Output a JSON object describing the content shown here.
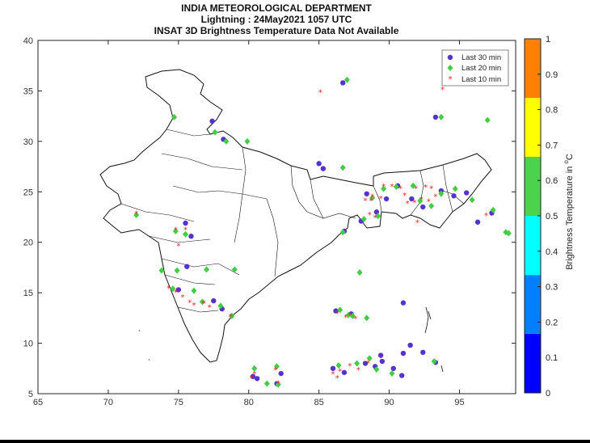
{
  "header": {
    "line1": "INDIA METEOROLOGICAL DEPARTMENT",
    "line2": "Lightning : 24May2021 1057 UTC",
    "line3": "INSAT 3D Brightness Temperature Data Not Available"
  },
  "colorbar": {
    "label_prefix": "Brightness Temperature in",
    "label_unit": "C",
    "label_degree": "o",
    "ticks": [
      "0",
      "0.1",
      "0.2",
      "0.3",
      "0.4",
      "0.5",
      "0.6",
      "0.7",
      "0.8",
      "0.9",
      "1"
    ],
    "colors": [
      "#0000ff",
      "#0080ff",
      "#00ffff",
      "#4cd24c",
      "#ffff00",
      "#ff8000"
    ]
  },
  "legend": {
    "items": [
      {
        "label": "Last 30 min",
        "marker": "circle",
        "color": "#5533cc"
      },
      {
        "label": "Last 20 min",
        "marker": "diamond",
        "color": "#44cc44"
      },
      {
        "label": "Last 10 min",
        "marker": "star",
        "color": "#ee2222"
      }
    ]
  },
  "chart_data": {
    "type": "scatter",
    "title": "INDIA METEOROLOGICAL DEPARTMENT",
    "xlabel": "",
    "ylabel": "",
    "xlim": [
      65,
      99
    ],
    "ylim": [
      5,
      40
    ],
    "xticks": [
      65,
      70,
      75,
      80,
      85,
      90,
      95
    ],
    "yticks": [
      5,
      10,
      15,
      20,
      25,
      30,
      35,
      40
    ],
    "series": [
      {
        "name": "Last 30 min",
        "marker": "circle",
        "color": "#5533cc",
        "points": [
          [
            86.7,
            35.8
          ],
          [
            77.4,
            32.0
          ],
          [
            78.2,
            30.2
          ],
          [
            85.0,
            27.8
          ],
          [
            85.3,
            27.3
          ],
          [
            93.3,
            32.4
          ],
          [
            75.5,
            21.9
          ],
          [
            75.9,
            20.6
          ],
          [
            75.6,
            17.6
          ],
          [
            75.0,
            15.3
          ],
          [
            77.5,
            14.2
          ],
          [
            78.1,
            13.4
          ],
          [
            80.3,
            6.7
          ],
          [
            80.6,
            6.5
          ],
          [
            82.0,
            6.0
          ],
          [
            82.3,
            7.0
          ],
          [
            86.0,
            7.5
          ],
          [
            86.8,
            7.1
          ],
          [
            86.2,
            13.2
          ],
          [
            87.3,
            12.9
          ],
          [
            88.3,
            8.0
          ],
          [
            89.0,
            7.7
          ],
          [
            89.4,
            8.8
          ],
          [
            89.5,
            8.2
          ],
          [
            90.3,
            7.5
          ],
          [
            90.9,
            6.8
          ],
          [
            91.0,
            9.0
          ],
          [
            91.5,
            9.8
          ],
          [
            92.4,
            9.1
          ],
          [
            91.0,
            14.0
          ],
          [
            88.0,
            22.1
          ],
          [
            88.4,
            24.8
          ],
          [
            89.8,
            24.3
          ],
          [
            90.6,
            25.6
          ],
          [
            91.6,
            24.3
          ],
          [
            92.4,
            23.5
          ],
          [
            93.7,
            25.1
          ],
          [
            94.6,
            24.6
          ],
          [
            95.5,
            24.9
          ],
          [
            96.3,
            22.0
          ],
          [
            97.3,
            22.9
          ],
          [
            86.8,
            21.1
          ],
          [
            89.1,
            23.0
          ],
          [
            93.3,
            8.1
          ]
        ]
      },
      {
        "name": "Last 20 min",
        "marker": "diamond",
        "color": "#44cc44",
        "points": [
          [
            87.0,
            36.1
          ],
          [
            74.7,
            32.4
          ],
          [
            77.6,
            30.9
          ],
          [
            78.4,
            30.0
          ],
          [
            79.9,
            30.0
          ],
          [
            86.7,
            27.4
          ],
          [
            93.7,
            32.4
          ],
          [
            97.0,
            32.1
          ],
          [
            72.0,
            22.7
          ],
          [
            74.8,
            21.1
          ],
          [
            75.5,
            20.8
          ],
          [
            73.8,
            17.2
          ],
          [
            74.9,
            17.2
          ],
          [
            77.0,
            17.3
          ],
          [
            79.0,
            17.3
          ],
          [
            74.6,
            15.4
          ],
          [
            76.1,
            15.2
          ],
          [
            76.7,
            14.1
          ],
          [
            78.0,
            13.7
          ],
          [
            78.8,
            12.7
          ],
          [
            80.4,
            7.5
          ],
          [
            81.3,
            6.0
          ],
          [
            82.0,
            7.7
          ],
          [
            82.1,
            5.9
          ],
          [
            86.4,
            7.8
          ],
          [
            86.5,
            13.3
          ],
          [
            87.1,
            12.8
          ],
          [
            87.4,
            12.7
          ],
          [
            88.4,
            12.5
          ],
          [
            87.7,
            8.0
          ],
          [
            88.6,
            8.5
          ],
          [
            89.1,
            7.4
          ],
          [
            90.2,
            7.0
          ],
          [
            93.2,
            8.2
          ],
          [
            87.9,
            17.0
          ],
          [
            86.7,
            21.0
          ],
          [
            88.2,
            22.3
          ],
          [
            89.2,
            22.6
          ],
          [
            88.8,
            24.4
          ],
          [
            89.6,
            25.3
          ],
          [
            90.5,
            25.5
          ],
          [
            91.7,
            25.6
          ],
          [
            92.2,
            24.1
          ],
          [
            93.0,
            23.6
          ],
          [
            93.7,
            24.8
          ],
          [
            94.7,
            25.3
          ],
          [
            95.9,
            24.2
          ],
          [
            97.4,
            23.2
          ],
          [
            98.3,
            21.0
          ],
          [
            98.5,
            20.9
          ]
        ]
      },
      {
        "name": "Last 10 min",
        "marker": "star",
        "color": "#ee2222",
        "points": [
          [
            85.1,
            34.9
          ],
          [
            93.8,
            35.2
          ],
          [
            72.0,
            22.9
          ],
          [
            74.8,
            21.3
          ],
          [
            75.5,
            21.3
          ],
          [
            75.0,
            19.7
          ],
          [
            74.3,
            15.5
          ],
          [
            74.8,
            15.1
          ],
          [
            75.3,
            14.6
          ],
          [
            75.8,
            14.1
          ],
          [
            76.1,
            13.8
          ],
          [
            76.8,
            14.0
          ],
          [
            77.2,
            13.6
          ],
          [
            78.7,
            12.7
          ],
          [
            80.4,
            7.0
          ],
          [
            81.9,
            7.4
          ],
          [
            82.1,
            6.1
          ],
          [
            86.0,
            7.0
          ],
          [
            86.5,
            7.3
          ],
          [
            86.3,
            13.0
          ],
          [
            86.9,
            12.6
          ],
          [
            87.2,
            12.8
          ],
          [
            87.6,
            12.5
          ],
          [
            87.2,
            7.8
          ],
          [
            87.8,
            7.4
          ],
          [
            88.5,
            8.1
          ],
          [
            88.6,
            22.8
          ],
          [
            89.0,
            22.5
          ],
          [
            88.3,
            24.2
          ],
          [
            88.8,
            24.6
          ],
          [
            89.4,
            24.4
          ],
          [
            89.6,
            25.6
          ],
          [
            90.2,
            25.6
          ],
          [
            90.8,
            25.4
          ],
          [
            91.3,
            23.9
          ],
          [
            91.8,
            24.0
          ],
          [
            92.3,
            24.3
          ],
          [
            92.8,
            24.1
          ],
          [
            93.3,
            24.6
          ],
          [
            91.9,
            25.4
          ],
          [
            92.6,
            25.5
          ],
          [
            93.0,
            25.4
          ],
          [
            92.0,
            22.0
          ],
          [
            96.9,
            22.7
          ],
          [
            80.2,
            6.6
          ],
          [
            86.3,
            6.6
          ],
          [
            91.1,
            24.7
          ],
          [
            88.7,
            24.2
          ]
        ]
      }
    ]
  }
}
